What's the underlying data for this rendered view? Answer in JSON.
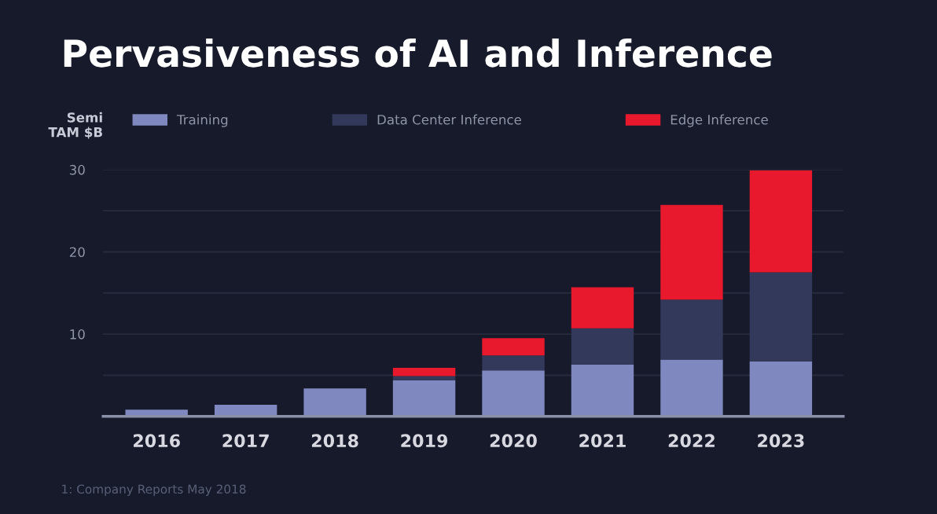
{
  "chart_data": {
    "type": "bar",
    "stacked": true,
    "title": "Pervasiveness of AI and Inference",
    "ylabel": "Semi\nTAM $B",
    "categories": [
      "2016",
      "2017",
      "2018",
      "2019",
      "2020",
      "2021",
      "2022",
      "2023"
    ],
    "series": [
      {
        "name": "Training",
        "color": "#7f88bf",
        "values": [
          0.8,
          1.4,
          3.4,
          4.4,
          5.6,
          6.3,
          6.9,
          6.7
        ]
      },
      {
        "name": "Data Center Inference",
        "color": "#33395a",
        "values": [
          null,
          null,
          null,
          0.5,
          1.8,
          4.4,
          7.3,
          10.8
        ]
      },
      {
        "name": "Edge Inference",
        "color": "#e8192c",
        "values": [
          null,
          null,
          null,
          1.0,
          2.1,
          5.0,
          11.5,
          12.4
        ]
      }
    ],
    "ylim": [
      0,
      30
    ],
    "yticks": [
      {
        "value": 5,
        "label": null
      },
      10,
      {
        "value": 15,
        "label": null
      },
      20,
      {
        "value": 25,
        "label": null
      },
      30
    ],
    "grid": "y",
    "legend": "top",
    "annotations": [
      "1: Company Reports May 2018"
    ]
  }
}
